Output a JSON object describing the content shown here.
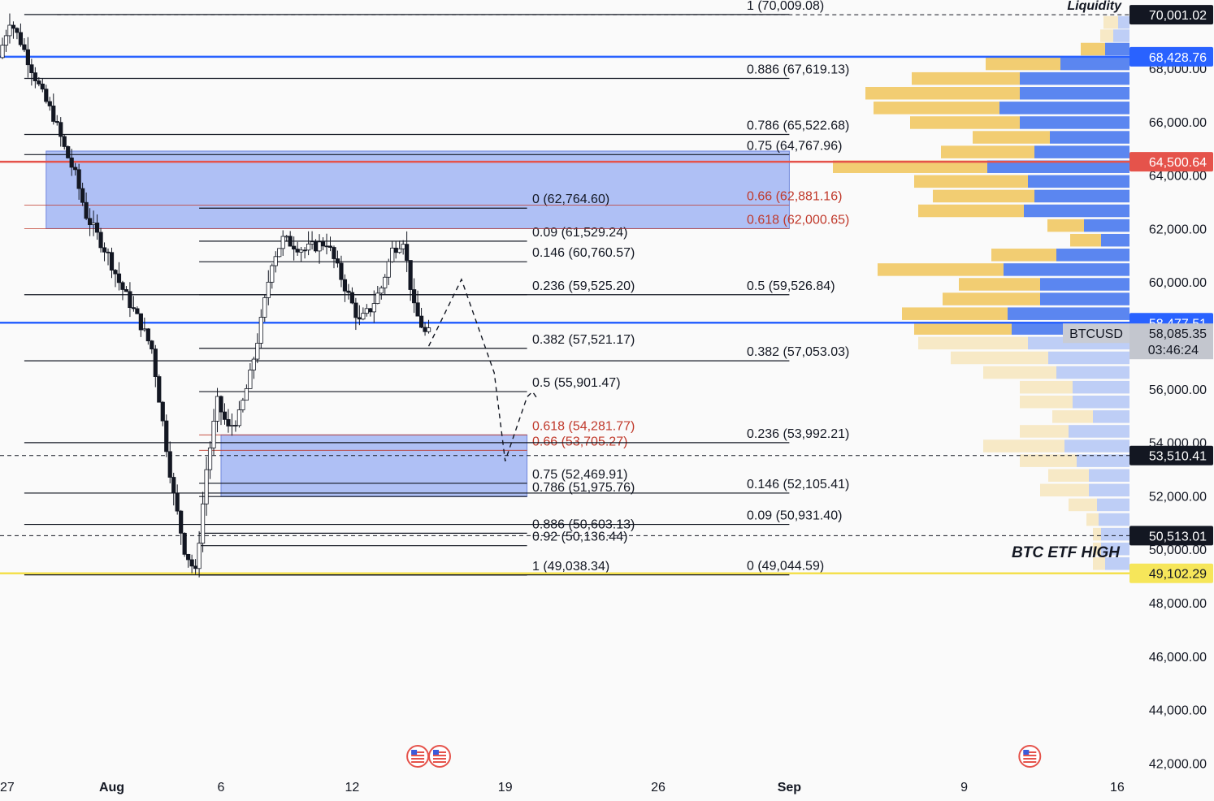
{
  "chart_data": {
    "type": "candlestick",
    "symbol": "BTCUSD",
    "y_axis": {
      "min": 41500,
      "max": 70500,
      "ticks": [
        42000,
        44000,
        46000,
        48000,
        50000,
        52000,
        54000,
        56000,
        58000,
        60000,
        62000,
        64000,
        66000,
        68000
      ],
      "tick_labels": [
        "42,000.00",
        "44,000.00",
        "46,000.00",
        "48,000.00",
        "50,000.00",
        "52,000.00",
        "54,000.00",
        "56,000.00",
        "58,000.00",
        "60,000.00",
        "62,000.00",
        "64,000.00",
        "66,000.00",
        "68,000.00"
      ]
    },
    "x_axis": {
      "start": "2024-07-27",
      "end": "2024-09-16",
      "ticks": [
        {
          "date": "2024-07-27",
          "label": "27"
        },
        {
          "date": "2024-08-01",
          "label": "Aug"
        },
        {
          "date": "2024-08-06",
          "label": "6"
        },
        {
          "date": "2024-08-12",
          "label": "12"
        },
        {
          "date": "2024-08-19",
          "label": "19"
        },
        {
          "date": "2024-08-26",
          "label": "26"
        },
        {
          "date": "2024-09-01",
          "label": "Sep"
        },
        {
          "date": "2024-09-09",
          "label": "9"
        },
        {
          "date": "2024-09-16",
          "label": "16"
        }
      ]
    },
    "price_path": [
      68400,
      69800,
      69000,
      68000,
      67000,
      66200,
      65000,
      64000,
      62500,
      61000,
      60000,
      59200,
      58400,
      57500,
      52000,
      50000,
      49100,
      53000,
      55500,
      54500,
      55000,
      56500,
      58500,
      60800,
      61600,
      61200,
      61500,
      60500,
      59500,
      58500,
      59000,
      59800,
      61200,
      61600,
      59000,
      58085
    ],
    "price_path_dates": [
      "2024-07-27",
      "2024-07-27T12",
      "2024-07-28",
      "2024-07-28T12",
      "2024-07-29",
      "2024-07-29T12",
      "2024-07-30",
      "2024-07-30T12",
      "2024-07-31",
      "2024-08-01",
      "2024-08-01T12",
      "2024-08-02",
      "2024-08-02T12",
      "2024-08-03",
      "2024-08-04",
      "2024-08-04T12",
      "2024-08-05",
      "2024-08-05T12",
      "2024-08-06",
      "2024-08-06T12",
      "2024-08-07",
      "2024-08-07T12",
      "2024-08-08",
      "2024-08-08T12",
      "2024-08-09",
      "2024-08-10",
      "2024-08-11",
      "2024-08-11T12",
      "2024-08-12",
      "2024-08-12T12",
      "2024-08-13",
      "2024-08-13T12",
      "2024-08-14",
      "2024-08-14T12",
      "2024-08-15",
      "2024-08-15T12"
    ],
    "projection_path": [
      {
        "date": "2024-08-15T12",
        "price": 57600
      },
      {
        "date": "2024-08-17",
        "price": 60100
      },
      {
        "date": "2024-08-18T12",
        "price": 56600
      },
      {
        "date": "2024-08-19",
        "price": 53300
      },
      {
        "date": "2024-08-20",
        "price": 55700
      },
      {
        "date": "2024-08-20T06",
        "price": 55900
      },
      {
        "date": "2024-08-20T12",
        "price": 55600
      }
    ],
    "zones": [
      {
        "from": "2024-07-29",
        "to": "2024-09-01",
        "top": 64900,
        "bottom": 62000
      },
      {
        "from": "2024-08-06",
        "to": "2024-08-20",
        "top": 54281.77,
        "bottom": 51975.76
      }
    ],
    "fib_left": {
      "from": "2024-08-05",
      "to": "2024-08-20",
      "levels": [
        {
          "label": "0 (62,764.60)",
          "price": 62764.6,
          "red": false
        },
        {
          "label": "0.09 (61,529.24)",
          "price": 61529.24,
          "red": false
        },
        {
          "label": "0.146 (60,760.57)",
          "price": 60760.57,
          "red": false
        },
        {
          "label": "0.236 (59,525.20)",
          "price": 59525.2,
          "red": false
        },
        {
          "label": "0.382 (57,521.17)",
          "price": 57521.17,
          "red": false
        },
        {
          "label": "0.5 (55,901.47)",
          "price": 55901.47,
          "red": false
        },
        {
          "label": "0.618 (54,281.77)",
          "price": 54281.77,
          "red": true
        },
        {
          "label": "0.66 (53,705.27)",
          "price": 53705.27,
          "red": true
        },
        {
          "label": "0.75 (52,469.91)",
          "price": 52469.91,
          "red": false
        },
        {
          "label": "0.786 (51,975.76)",
          "price": 51975.76,
          "red": false
        },
        {
          "label": "0.886 (50,603.13)",
          "price": 50603.13,
          "red": false
        },
        {
          "label": "0.92 (50,136.44)",
          "price": 50136.44,
          "red": false
        },
        {
          "label": "1 (49,038.34)",
          "price": 49038.34,
          "red": false
        }
      ]
    },
    "fib_right": {
      "from": "2024-07-28",
      "to": "2024-09-01",
      "levels": [
        {
          "label": "1 (70,009.08)",
          "price": 70009.08,
          "red": false
        },
        {
          "label": "0.886 (67,619.13)",
          "price": 67619.13,
          "red": false
        },
        {
          "label": "0.786 (65,522.68)",
          "price": 65522.68,
          "red": false
        },
        {
          "label": "0.75 (64,767.96)",
          "price": 64767.96,
          "red": false
        },
        {
          "label": "0.66 (62,881.16)",
          "price": 62881.16,
          "red": true
        },
        {
          "label": "0.618 (62,000.65)",
          "price": 62000.65,
          "red": true
        },
        {
          "label": "0.5 (59,526.84)",
          "price": 59526.84,
          "red": false
        },
        {
          "label": "0.382 (57,053.03)",
          "price": 57053.03,
          "red": false
        },
        {
          "label": "0.236 (53,992.21)",
          "price": 53992.21,
          "red": false
        },
        {
          "label": "0.146 (52,105.41)",
          "price": 52105.41,
          "red": false
        },
        {
          "label": "0.09 (50,931.40)",
          "price": 50931.4,
          "red": false
        },
        {
          "label": "0 (49,044.59)",
          "price": 49044.59,
          "red": false
        }
      ]
    },
    "horizontal_lines": [
      {
        "price": 68428.76,
        "color": "#2962ff",
        "style": "solid",
        "label": "68,428.76"
      },
      {
        "price": 64500.64,
        "color": "#e5534b",
        "style": "solid",
        "label": "64,500.64"
      },
      {
        "price": 58477.51,
        "color": "#2962ff",
        "style": "solid",
        "label": "58,477.51"
      },
      {
        "price": 49102.29,
        "color": "#f4e04d",
        "style": "solid",
        "label": "49,102.29"
      },
      {
        "price": 70001.02,
        "color": "#131722",
        "style": "dashed",
        "label": "70,001.02"
      },
      {
        "price": 53510.41,
        "color": "#131722",
        "style": "dashed",
        "label": "53,510.41"
      },
      {
        "price": 50513.01,
        "color": "#131722",
        "style": "dashed",
        "label": "50,513.01"
      }
    ],
    "current_price": {
      "symbol": "BTCUSD",
      "value": "58,085.35",
      "countdown": "03:46:24",
      "price": 58085.35
    },
    "volume_profile": {
      "title": "Liquidity",
      "rows": [
        {
          "price": 69700,
          "buy": 18,
          "sell": 14,
          "faded": true
        },
        {
          "price": 69200,
          "buy": 16,
          "sell": 20,
          "faded": true
        },
        {
          "price": 68700,
          "buy": 30,
          "sell": 30,
          "faded": false
        },
        {
          "price": 68150,
          "buy": 92,
          "sell": 85,
          "faded": false
        },
        {
          "price": 67600,
          "buy": 133,
          "sell": 135,
          "faded": false
        },
        {
          "price": 67050,
          "buy": 190,
          "sell": 135,
          "faded": false
        },
        {
          "price": 66500,
          "buy": 155,
          "sell": 160,
          "faded": false
        },
        {
          "price": 65950,
          "buy": 135,
          "sell": 135,
          "faded": false
        },
        {
          "price": 65400,
          "buy": 95,
          "sell": 98,
          "faded": false
        },
        {
          "price": 64850,
          "buy": 115,
          "sell": 117,
          "faded": false
        },
        {
          "price": 64300,
          "buy": 190,
          "sell": 175,
          "faded": false
        },
        {
          "price": 63750,
          "buy": 140,
          "sell": 125,
          "faded": false
        },
        {
          "price": 63200,
          "buy": 125,
          "sell": 117,
          "faded": false
        },
        {
          "price": 62650,
          "buy": 130,
          "sell": 130,
          "faded": false
        },
        {
          "price": 62100,
          "buy": 45,
          "sell": 56,
          "faded": false
        },
        {
          "price": 61550,
          "buy": 38,
          "sell": 35,
          "faded": false
        },
        {
          "price": 61000,
          "buy": 80,
          "sell": 90,
          "faded": false
        },
        {
          "price": 60450,
          "buy": 155,
          "sell": 155,
          "faded": false
        },
        {
          "price": 59900,
          "buy": 100,
          "sell": 110,
          "faded": false
        },
        {
          "price": 59350,
          "buy": 120,
          "sell": 110,
          "faded": false
        },
        {
          "price": 58800,
          "buy": 130,
          "sell": 150,
          "faded": false
        },
        {
          "price": 58250,
          "buy": 120,
          "sell": 145,
          "faded": false
        },
        {
          "price": 57700,
          "buy": 135,
          "sell": 125,
          "faded": true
        },
        {
          "price": 57150,
          "buy": 120,
          "sell": 100,
          "faded": true
        },
        {
          "price": 56600,
          "buy": 90,
          "sell": 90,
          "faded": true
        },
        {
          "price": 56050,
          "buy": 65,
          "sell": 70,
          "faded": true
        },
        {
          "price": 55500,
          "buy": 65,
          "sell": 70,
          "faded": true
        },
        {
          "price": 54950,
          "buy": 50,
          "sell": 45,
          "faded": true
        },
        {
          "price": 54400,
          "buy": 60,
          "sell": 75,
          "faded": true
        },
        {
          "price": 53850,
          "buy": 100,
          "sell": 80,
          "faded": true
        },
        {
          "price": 53300,
          "buy": 70,
          "sell": 65,
          "faded": true
        },
        {
          "price": 52750,
          "buy": 50,
          "sell": 50,
          "faded": true
        },
        {
          "price": 52200,
          "buy": 60,
          "sell": 50,
          "faded": true
        },
        {
          "price": 51650,
          "buy": 35,
          "sell": 40,
          "faded": true
        },
        {
          "price": 51100,
          "buy": 15,
          "sell": 38,
          "faded": true
        },
        {
          "price": 50550,
          "buy": 10,
          "sell": 35,
          "faded": true
        },
        {
          "price": 50000,
          "buy": 10,
          "sell": 35,
          "faded": true
        },
        {
          "price": 49450,
          "buy": 15,
          "sell": 30,
          "faded": true
        }
      ]
    },
    "annotations": [
      {
        "text": "BTC ETF HIGH",
        "date": "2024-09-09T18",
        "price": 49550
      }
    ],
    "event_markers": [
      "2024-08-15",
      "2024-08-16",
      "2024-09-12"
    ],
    "grid": false
  }
}
